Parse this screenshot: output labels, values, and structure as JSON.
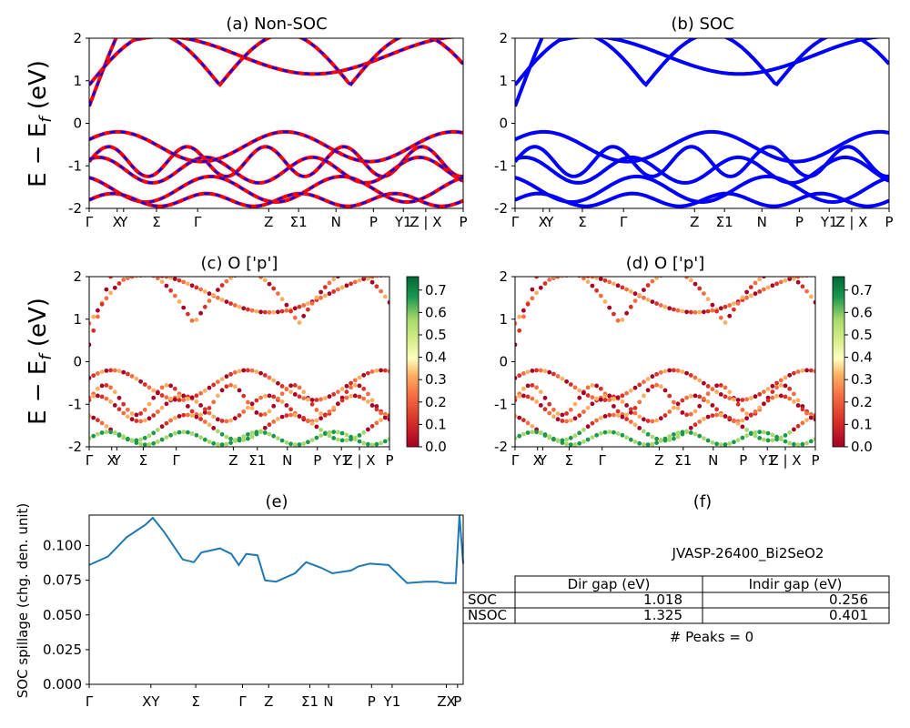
{
  "panels": {
    "a": {
      "title": "(a) Non-SOC"
    },
    "b": {
      "title": "(b) SOC"
    },
    "c": {
      "title": "(c)  O ['p']"
    },
    "d": {
      "title": "(d) O ['p']"
    },
    "e": {
      "title": "(e)"
    },
    "f": {
      "title": "(f)"
    }
  },
  "ylabel_band": "E − E_f (eV)",
  "ylabel_spill": "SOC spillage (chg. den. unit)",
  "kpath_ticks": [
    "Γ",
    "X",
    "Y",
    "Σ",
    "Γ",
    "Z",
    "Σ1",
    "N",
    "P",
    "Y1",
    "Z | X",
    "P"
  ],
  "spill_ticks": [
    "Γ",
    "XY",
    "Σ",
    "Γ",
    "Z",
    "Σ1",
    "N",
    "P",
    "Y1",
    "ZX",
    "P"
  ],
  "colorbar_ticks": [
    "0.0",
    "0.1",
    "0.2",
    "0.3",
    "0.4",
    "0.5",
    "0.6",
    "0.7"
  ],
  "colors": {
    "non_soc_line": "#ff0000",
    "soc_line": "#0000ff",
    "spill_line": "#1f77b4"
  },
  "chart_data": [
    {
      "type": "line",
      "title": "(a) Non-SOC",
      "ylabel": "E − E_f (eV)",
      "ylim": [
        -2,
        2
      ],
      "x_ticks": [
        "Γ",
        "X",
        "Y",
        "Σ",
        "Γ",
        "Z",
        "Σ1",
        "N",
        "P",
        "Y1",
        "Z | X",
        "P"
      ],
      "series": [
        {
          "name": "",
          "values": "band energies (red = non-SOC, blue dashed overlay)"
        }
      ],
      "yticks": [
        -2,
        -1,
        0,
        1,
        2
      ]
    },
    {
      "type": "line",
      "title": "(b) SOC",
      "ylim": [
        -2,
        2
      ],
      "yticks": [
        -2,
        -1,
        0,
        1,
        2
      ]
    },
    {
      "type": "scatter",
      "title": "(c)  O ['p']",
      "ylim": [
        -2,
        2
      ],
      "colorbar": [
        0.0,
        0.75
      ],
      "colormap": "RdYlGn"
    },
    {
      "type": "scatter",
      "title": "(d) O ['p']",
      "ylim": [
        -2,
        2
      ],
      "colorbar": [
        0.0,
        0.75
      ],
      "colormap": "RdYlGn"
    },
    {
      "type": "line",
      "title": "(e)",
      "ylabel": "SOC spillage (chg. den. unit)",
      "ylim": [
        0,
        0.12
      ],
      "yticks": [
        "0.000",
        "0.025",
        "0.050",
        "0.075",
        "0.100"
      ],
      "x": [
        0.0,
        0.05,
        0.1,
        0.15,
        0.17,
        0.2,
        0.25,
        0.28,
        0.3,
        0.35,
        0.38,
        0.4,
        0.42,
        0.45,
        0.47,
        0.5,
        0.55,
        0.58,
        0.62,
        0.65,
        0.7,
        0.72,
        0.75,
        0.8,
        0.85,
        0.9,
        0.93,
        0.95,
        0.98,
        0.99,
        1.0
      ],
      "values": [
        0.086,
        0.092,
        0.106,
        0.115,
        0.12,
        0.11,
        0.09,
        0.088,
        0.095,
        0.098,
        0.094,
        0.086,
        0.094,
        0.093,
        0.075,
        0.074,
        0.08,
        0.088,
        0.084,
        0.08,
        0.082,
        0.085,
        0.087,
        0.086,
        0.073,
        0.074,
        0.074,
        0.073,
        0.073,
        0.122,
        0.087
      ]
    }
  ],
  "table": {
    "name": "JVASP-26400_Bi2SeO2",
    "headers": [
      "Dir gap (eV)",
      "Indir gap (eV)"
    ],
    "rows": [
      {
        "label": "SOC",
        "dir": "1.018",
        "indir": "0.256"
      },
      {
        "label": "NSOC",
        "dir": "1.325",
        "indir": "0.401"
      }
    ],
    "peaks": "# Peaks = 0"
  }
}
